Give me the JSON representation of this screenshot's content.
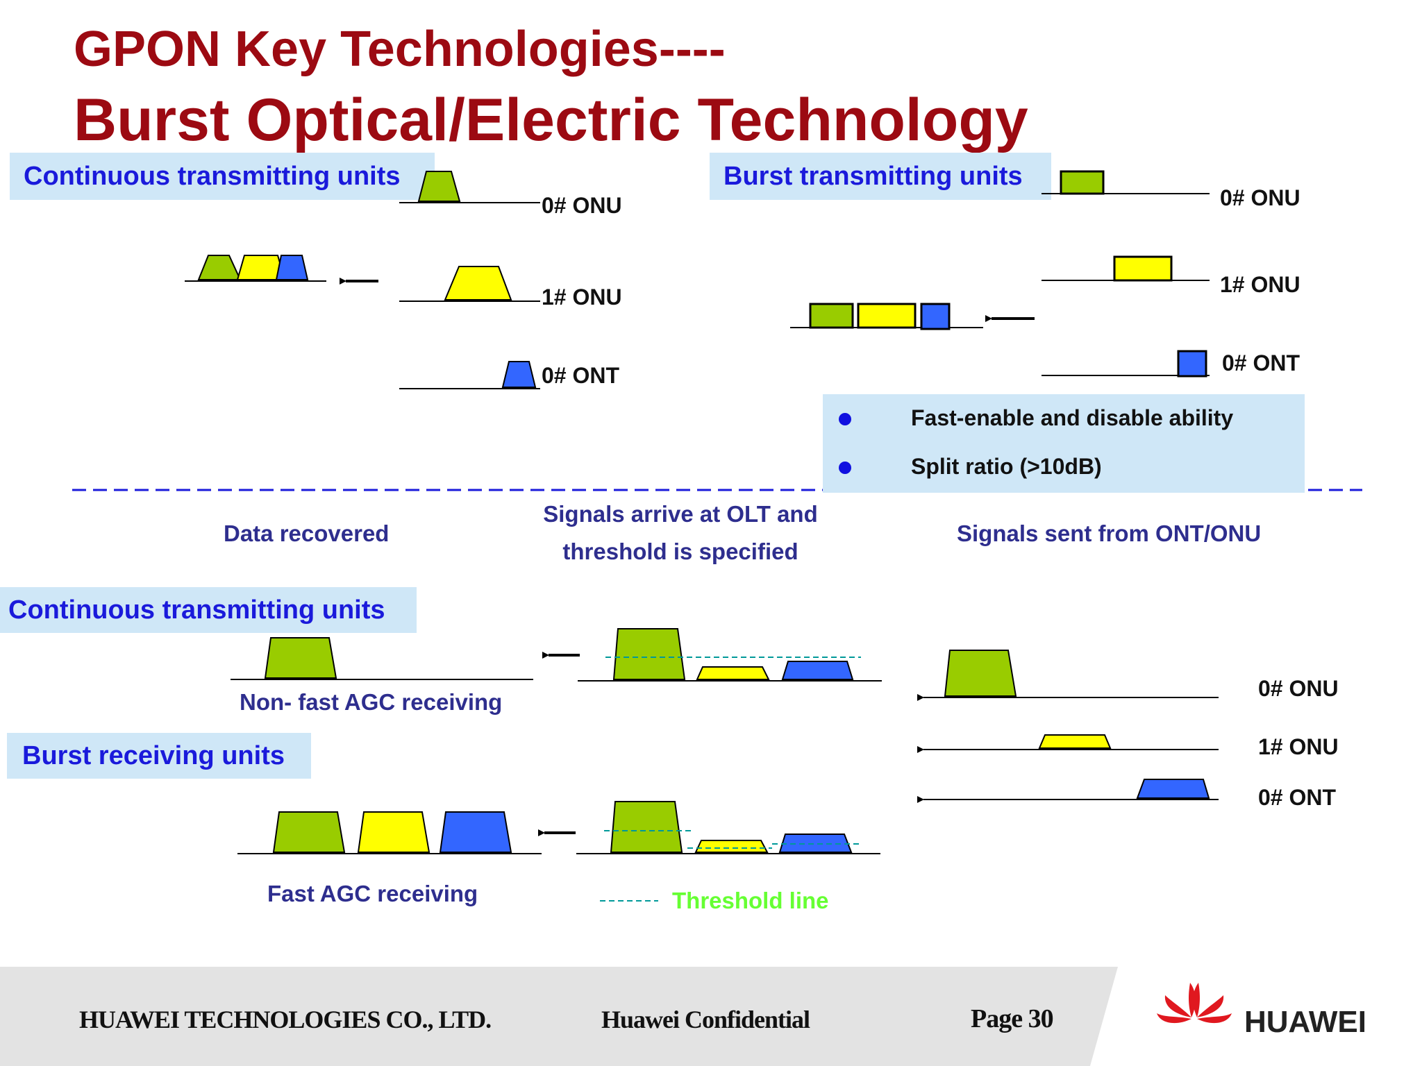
{
  "title": {
    "line1": "GPON Key  Technologies----",
    "line2": "Burst  Optical/Electric Technology"
  },
  "top_left": {
    "header": "Continuous transmitting units",
    "labels": [
      "0# ONU",
      "1# ONU",
      "0# ONT"
    ]
  },
  "top_right": {
    "header": "Burst transmitting units",
    "labels": [
      "0# ONU",
      "1# ONU",
      "0# ONT"
    ],
    "features": [
      "Fast-enable and disable ability",
      "Split ratio (>10dB)"
    ]
  },
  "captions": {
    "data_recovered": "Data recovered",
    "signals_arrive_1": "Signals arrive at OLT and",
    "signals_arrive_2": "threshold is specified",
    "signals_sent": "Signals sent from ONT/ONU"
  },
  "bottom": {
    "continuous_header": "Continuous transmitting units",
    "non_fast_agc": "Non- fast AGC receiving",
    "burst_header": "Burst receiving units",
    "fast_agc": "Fast AGC receiving",
    "threshold_legend": "Threshold line",
    "labels": [
      "0# ONU",
      "1# ONU",
      "0# ONT"
    ]
  },
  "footer": {
    "company": "HUAWEI TECHNOLOGIES CO., LTD.",
    "confidential": "Huawei Confidential",
    "page": "Page 30",
    "brand": "HUAWEI"
  },
  "colors": {
    "title": "#9c0a12",
    "header_bg": "#cfe7f7",
    "header_text": "#1a1adb",
    "green": "#99cc00",
    "yellow": "#ffff00",
    "blue": "#3366ff",
    "threshold": "#009999",
    "legend_text": "#66ff33"
  }
}
